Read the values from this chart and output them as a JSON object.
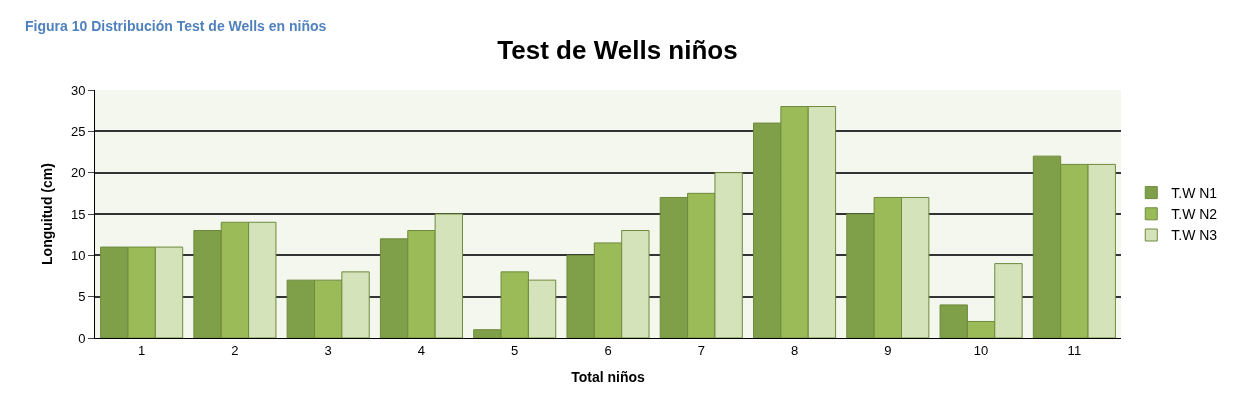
{
  "chart_data": {
    "type": "bar",
    "title": "Test de Wells niños",
    "xlabel": "Total niños",
    "ylabel": "Longuitud (cm)",
    "annotations": [
      "Figura 10 Distribución Test de Wells en niños"
    ],
    "categories": [
      "1",
      "2",
      "3",
      "4",
      "5",
      "6",
      "7",
      "8",
      "9",
      "10",
      "11"
    ],
    "series": [
      {
        "name": "T.W N1",
        "color": "#7f9f48",
        "values": [
          11,
          13,
          7,
          12,
          1,
          10,
          17,
          26,
          15,
          4,
          22
        ]
      },
      {
        "name": "T.W N2",
        "color": "#9bbb59",
        "values": [
          11,
          14,
          7,
          13,
          8,
          11.5,
          17.5,
          28,
          17,
          2,
          21
        ]
      },
      {
        "name": "T.W N3",
        "color": "#d5e3bb",
        "values": [
          11,
          14,
          8,
          15,
          7,
          13,
          20,
          28,
          17,
          9,
          21
        ]
      }
    ],
    "ylim": [
      0,
      30
    ],
    "yticks": [
      0,
      5,
      10,
      15,
      20,
      25,
      30
    ],
    "grid": "y",
    "legend": "right"
  }
}
